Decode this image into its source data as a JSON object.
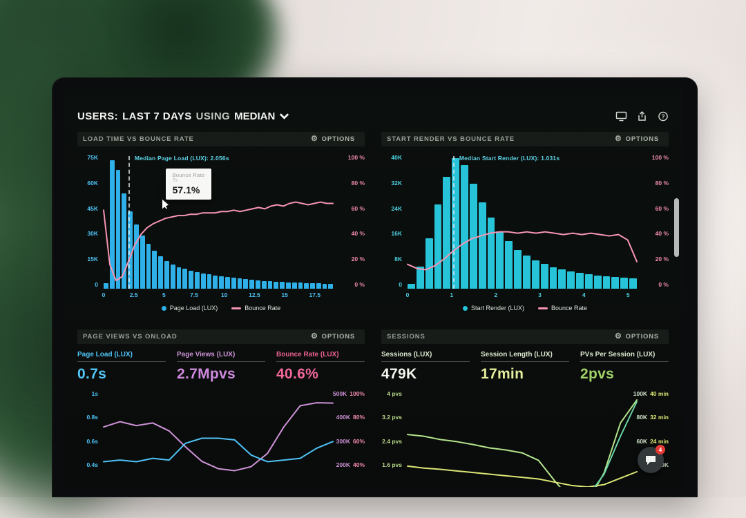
{
  "header": {
    "title_users": "USERS:",
    "title_range": "LAST 7 DAYS",
    "title_using": "USING",
    "title_metric": "MEDIAN"
  },
  "options_label": "OPTIONS",
  "chat_badge": "4",
  "chart_data": [
    {
      "type": "bar",
      "title": "LOAD TIME VS BOUNCE RATE",
      "bar_color": "#2fb0e8",
      "line_color": "#f795b4",
      "axis_left_color": "#4fc3f7",
      "axis_right_color": "#f08bab",
      "bar_max": 75000,
      "x_max": 19,
      "left_axis": [
        "75K",
        "60K",
        "45K",
        "30K",
        "15K",
        "0"
      ],
      "right_axis": [
        "100 %",
        "80 %",
        "60 %",
        "40 %",
        "20 %",
        "0 %"
      ],
      "x_ticks": [
        {
          "v": 0,
          "label": "0"
        },
        {
          "v": 2.5,
          "label": "2.5"
        },
        {
          "v": 5,
          "label": "5"
        },
        {
          "v": 7.5,
          "label": "7.5"
        },
        {
          "v": 10,
          "label": "10"
        },
        {
          "v": 12.5,
          "label": "12.5"
        },
        {
          "v": 15,
          "label": "15"
        },
        {
          "v": 17.5,
          "label": "17.5"
        }
      ],
      "bars": [
        3000,
        71000,
        66000,
        53000,
        43000,
        35500,
        29500,
        25000,
        21000,
        18000,
        15500,
        13500,
        12000,
        11000,
        10000,
        9200,
        8500,
        7900,
        7400,
        6900,
        6400,
        6000,
        5600,
        5300,
        5000,
        4700,
        4400,
        4200,
        4000,
        3800,
        3600,
        3400,
        3300,
        3100,
        3000,
        2900,
        2800,
        2700
      ],
      "line_pct": [
        58,
        18,
        6,
        9,
        20,
        32,
        40,
        45,
        48,
        50,
        52,
        53,
        54,
        54,
        55,
        55,
        56,
        56,
        56,
        57,
        57,
        58,
        57,
        58,
        59,
        60,
        59,
        61,
        62,
        61,
        63,
        64,
        63,
        62,
        63,
        64,
        63,
        63
      ],
      "median": {
        "x": 2.056,
        "label": "Median Page Load (LUX): 2.056s"
      },
      "tooltip": {
        "title": "Bounce Rate",
        "sub": "7s",
        "value": "57.1%"
      },
      "legend": [
        {
          "label": "Page Load (LUX)",
          "color": "#2fb0e8",
          "marker": "dot"
        },
        {
          "label": "Bounce Rate",
          "color": "#f795b4",
          "marker": "line"
        }
      ]
    },
    {
      "type": "bar",
      "title": "START RENDER VS BOUNCE RATE",
      "bar_color": "#27c4d9",
      "line_color": "#f795b4",
      "axis_left_color": "#4dd0e1",
      "axis_right_color": "#f08bab",
      "bar_max": 40000,
      "x_max": 5.2,
      "left_axis": [
        "40K",
        "32K",
        "24K",
        "16K",
        "8K",
        "0"
      ],
      "right_axis": [
        "100 %",
        "80 %",
        "60 %",
        "40 %",
        "20 %",
        "0 %"
      ],
      "x_ticks": [
        {
          "v": 0,
          "label": "0"
        },
        {
          "v": 1,
          "label": "1"
        },
        {
          "v": 2,
          "label": "2"
        },
        {
          "v": 3,
          "label": "3"
        },
        {
          "v": 4,
          "label": "4"
        },
        {
          "v": 5,
          "label": "5"
        }
      ],
      "bars": [
        1500,
        6500,
        15000,
        25000,
        33000,
        38500,
        36500,
        31000,
        25500,
        21000,
        17000,
        14000,
        11500,
        9800,
        8400,
        7300,
        6400,
        5700,
        5100,
        4600,
        4200,
        3900,
        3600,
        3400,
        3200,
        3000
      ],
      "line_pct": [
        18,
        15,
        14,
        17,
        22,
        28,
        33,
        37,
        39,
        41,
        42,
        42,
        41,
        42,
        41,
        42,
        41,
        40,
        41,
        40,
        41,
        40,
        39,
        40,
        36,
        20
      ],
      "median": {
        "x": 1.031,
        "label": "Median Start Render (LUX): 1.031s"
      },
      "legend": [
        {
          "label": "Start Render (LUX)",
          "color": "#27c4d9",
          "marker": "dot"
        },
        {
          "label": "Bounce Rate",
          "color": "#f795b4",
          "marker": "line"
        }
      ]
    },
    {
      "type": "line",
      "title": "PAGE VIEWS VS ONLOAD",
      "metrics": [
        {
          "label": "Page Load (LUX)",
          "value": "0.7s",
          "label_color": "#4fc3f7",
          "value_color": "#53c6f9"
        },
        {
          "label": "Page Views (LUX)",
          "value": "2.7Mpvs",
          "label_color": "#ce93d8",
          "value_color": "#d08ae0"
        },
        {
          "label": "Bounce Rate (LUX)",
          "value": "40.6%",
          "label_color": "#f06292",
          "value_color": "#f2679c"
        }
      ],
      "left_axis": [
        "1s",
        "0.8s",
        "0.6s",
        "0.4s"
      ],
      "left_axis_color": "#4fc3f7",
      "right_axis": [
        [
          "500K",
          "100%"
        ],
        [
          "400K",
          "80%"
        ],
        [
          "300K",
          "60%"
        ],
        [
          "200K",
          "40%"
        ]
      ],
      "right_axis_colors": [
        "#ce93d8",
        "#f58bb0"
      ],
      "series": [
        {
          "name": "Page Views (LUX)",
          "color": "#ce93d8",
          "min": 180,
          "max": 545,
          "values": [
            432,
            448,
            436,
            444,
            420,
            372,
            328,
            306,
            300,
            312,
            352,
            432,
            496,
            505,
            504
          ]
        },
        {
          "name": "Page Load (LUX)",
          "color": "#4fc3f7",
          "min": 0.33,
          "max": 1.05,
          "values": [
            0.62,
            0.63,
            0.62,
            0.64,
            0.63,
            0.73,
            0.76,
            0.76,
            0.75,
            0.66,
            0.62,
            0.63,
            0.64,
            0.7,
            0.74
          ]
        },
        {
          "name": "Bounce Rate (LUX)",
          "color": "#f48fb1",
          "min": 28,
          "max": 108,
          "values": [
            41,
            42,
            41,
            40,
            41,
            39,
            37,
            36,
            37,
            39,
            40,
            41,
            39,
            35,
            31
          ]
        }
      ]
    },
    {
      "type": "line",
      "title": "SESSIONS",
      "metrics": [
        {
          "label": "Sessions (LUX)",
          "value": "479K",
          "label_color": "#dce8cf",
          "value_color": "#f2f6ee"
        },
        {
          "label": "Session Length (LUX)",
          "value": "17min",
          "label_color": "#dce8cf",
          "value_color": "#e6ee9c"
        },
        {
          "label": "PVs Per Session (LUX)",
          "value": "2pvs",
          "label_color": "#dce8cf",
          "value_color": "#a2d26a"
        }
      ],
      "left_axis": [
        "4 pvs",
        "3.2 pvs",
        "2.4 pvs",
        "1.6 pvs"
      ],
      "left_axis_color": "#b9d98a",
      "right_axis": [
        [
          "100K",
          "40 min"
        ],
        [
          "80K",
          "32 min"
        ],
        [
          "60K",
          "24 min"
        ],
        [
          "40K",
          ""
        ]
      ],
      "right_axis_colors": [
        "#cfe0cb",
        "#dce775"
      ],
      "series": [
        {
          "name": "PVs Per Session (LUX)",
          "color": "#b5e48c",
          "min": 1.4,
          "max": 4.3,
          "values": [
            3.22,
            3.18,
            3.1,
            3.05,
            2.98,
            2.9,
            2.85,
            2.78,
            2.6,
            2.1,
            1.65,
            1.6,
            2.3,
            3.5,
            4.05
          ]
        },
        {
          "name": "Session Length (LUX)",
          "color": "#dce775",
          "min": 14,
          "max": 44,
          "values": [
            25,
            24.5,
            24.2,
            23.8,
            23.4,
            23,
            22.6,
            22.2,
            21.8,
            21,
            20.2,
            19.8,
            20.4,
            22,
            23.6
          ]
        },
        {
          "name": "Sessions (LUX)",
          "color": "#6cd4a8",
          "min": 35,
          "max": 105,
          "values": [
            46,
            46,
            45.5,
            45,
            44.5,
            44,
            43.5,
            43,
            42.5,
            42,
            41.5,
            43,
            56,
            78,
            98
          ]
        }
      ]
    }
  ]
}
